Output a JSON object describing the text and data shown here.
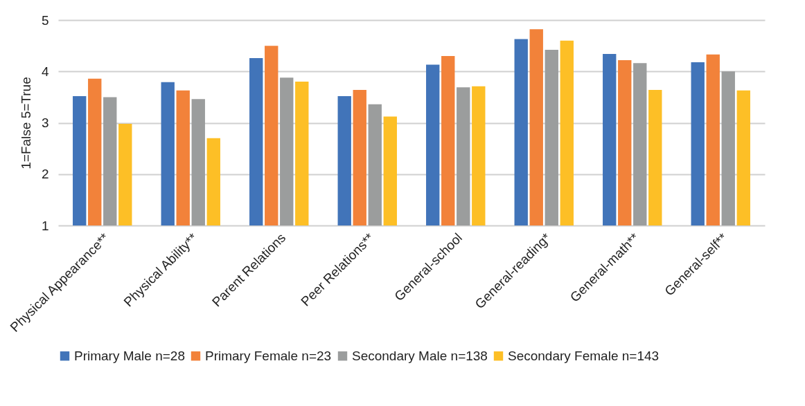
{
  "chart_data": {
    "type": "bar",
    "ylabel": "1=False  5=True",
    "categories": [
      "Physical Appearance**",
      "Physical Ability**",
      "Parent Relations",
      "Peer Relations**",
      "General-school",
      "General-reading*",
      "General-math**",
      "General-self**"
    ],
    "series": [
      {
        "name": "Primary Male n=28",
        "color": "#4174b9",
        "values": [
          3.52,
          3.79,
          4.26,
          3.52,
          4.13,
          4.63,
          4.34,
          4.18
        ]
      },
      {
        "name": "Primary Female n=23",
        "color": "#f2823a",
        "values": [
          3.86,
          3.63,
          4.5,
          3.64,
          4.3,
          4.82,
          4.22,
          4.33
        ]
      },
      {
        "name": "Secondary Male n=138",
        "color": "#9b9d9d",
        "values": [
          3.5,
          3.46,
          3.88,
          3.36,
          3.69,
          4.42,
          4.16,
          4.0
        ]
      },
      {
        "name": "Secondary Female n=143",
        "color": "#fdbf26",
        "values": [
          2.98,
          2.7,
          3.8,
          3.12,
          3.71,
          4.6,
          3.64,
          3.63
        ]
      }
    ],
    "ylim": [
      1,
      5
    ],
    "yticks": [
      1,
      2,
      3,
      4,
      5
    ],
    "grid": "y",
    "legend": "bottom"
  }
}
